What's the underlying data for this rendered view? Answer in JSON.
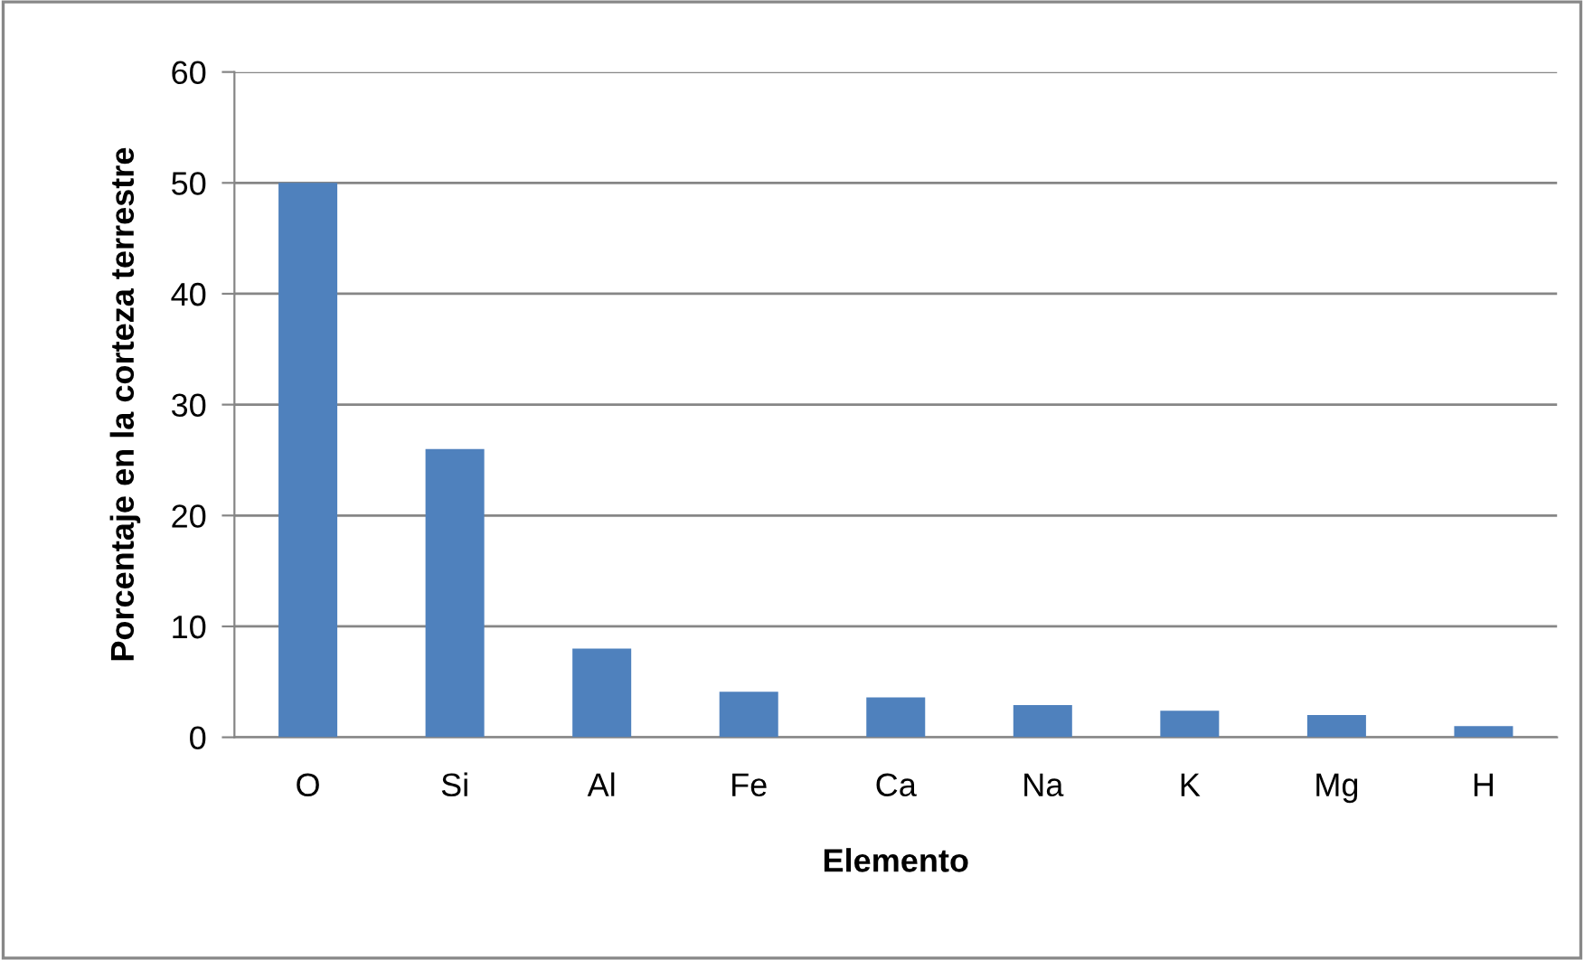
{
  "chart_data": {
    "type": "bar",
    "xlabel": "Elemento",
    "ylabel": "Porcentaje en la corteza terrestre",
    "categories": [
      "O",
      "Si",
      "Al",
      "Fe",
      "Ca",
      "Na",
      "K",
      "Mg",
      "H"
    ],
    "values": [
      50,
      26,
      8,
      4.1,
      3.6,
      2.9,
      2.4,
      2,
      1
    ],
    "color": "#4f81bd",
    "ylim": [
      0,
      60
    ],
    "yticks": [
      0,
      10,
      20,
      30,
      40,
      50,
      60
    ],
    "grid": "y",
    "legend": false
  }
}
